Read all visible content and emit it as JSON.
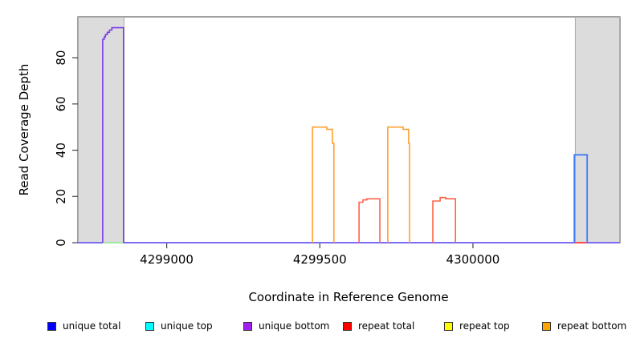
{
  "chart_data": {
    "type": "area",
    "title": "",
    "xlabel": "Coordinate in Reference Genome",
    "ylabel": "Read Coverage Depth",
    "xlim": [
      4298710,
      4300480
    ],
    "ylim": [
      0,
      97.7
    ],
    "x_ticks": [
      4299000,
      4299500,
      4300000
    ],
    "y_ticks": [
      0,
      20,
      40,
      60,
      80
    ],
    "grid": false,
    "legend_position": "bottom",
    "box_color": "#404040",
    "highlight_regions": [
      {
        "name": "left-gray-region",
        "x0": 4298710,
        "x1": 4298862,
        "fill": "#DCDCDC",
        "border": "#ACACAC"
      },
      {
        "name": "right-gray-region",
        "x0": 4300333,
        "x1": 4300480,
        "fill": "#DCDCDC",
        "border": "#ACACAC"
      }
    ],
    "series": [
      {
        "name": "unique-baseline-left",
        "color": "#7B6CF2",
        "width": 2,
        "points": [
          [
            4298710,
            0
          ],
          [
            4298791,
            0
          ]
        ]
      },
      {
        "name": "green-zero-segment",
        "color": "#A0E8A0",
        "width": 2,
        "points": [
          [
            4298791,
            0
          ],
          [
            4298859,
            0
          ]
        ]
      },
      {
        "name": "unique-baseline-mid",
        "color": "#7B6CF2",
        "width": 2,
        "points": [
          [
            4298859,
            0
          ],
          [
            4300331,
            0
          ]
        ]
      },
      {
        "name": "red-zero-segment",
        "color": "#FF4D4D",
        "width": 2,
        "points": [
          [
            4300331,
            0
          ],
          [
            4300373,
            0
          ]
        ]
      },
      {
        "name": "unique-baseline-right",
        "color": "#7B6CF2",
        "width": 2,
        "points": [
          [
            4300373,
            0
          ],
          [
            4300480,
            0
          ]
        ]
      },
      {
        "name": "repeat-bottom-peak-1",
        "color": "#FFA030",
        "width": 1.6,
        "points": [
          [
            4299476,
            0
          ],
          [
            4299476,
            50
          ],
          [
            4299523,
            50
          ],
          [
            4299523,
            49
          ],
          [
            4299541,
            49
          ],
          [
            4299541,
            43
          ],
          [
            4299546,
            43
          ],
          [
            4299546,
            0
          ]
        ]
      },
      {
        "name": "repeat-short-peak-1",
        "color": "#FF6347",
        "width": 1.6,
        "points": [
          [
            4299628,
            0
          ],
          [
            4299628,
            17.5
          ],
          [
            4299641,
            17.5
          ],
          [
            4299641,
            18.5
          ],
          [
            4299654,
            18.5
          ],
          [
            4299654,
            19
          ],
          [
            4299696,
            19
          ],
          [
            4299696,
            0
          ]
        ]
      },
      {
        "name": "repeat-bottom-peak-2",
        "color": "#FFA030",
        "width": 1.6,
        "points": [
          [
            4299722,
            0
          ],
          [
            4299722,
            50
          ],
          [
            4299772,
            50
          ],
          [
            4299772,
            49
          ],
          [
            4299790,
            49
          ],
          [
            4299790,
            43
          ],
          [
            4299793,
            43
          ],
          [
            4299793,
            0
          ]
        ]
      },
      {
        "name": "repeat-short-peak-2",
        "color": "#FF6347",
        "width": 1.6,
        "points": [
          [
            4299869,
            0
          ],
          [
            4299869,
            18
          ],
          [
            4299893,
            18
          ],
          [
            4299893,
            19.5
          ],
          [
            4299911,
            19.5
          ],
          [
            4299911,
            19
          ],
          [
            4299943,
            19
          ],
          [
            4299943,
            0
          ]
        ]
      },
      {
        "name": "unique-bottom-left-peak",
        "color": "#7A3BE8",
        "width": 1.6,
        "points": [
          [
            4298791,
            0
          ],
          [
            4298791,
            88
          ],
          [
            4298796,
            88
          ],
          [
            4298796,
            89
          ],
          [
            4298800,
            89
          ],
          [
            4298800,
            90
          ],
          [
            4298806,
            90
          ],
          [
            4298806,
            91
          ],
          [
            4298813,
            91
          ],
          [
            4298813,
            92
          ],
          [
            4298821,
            92
          ],
          [
            4298821,
            93
          ],
          [
            4298859,
            93
          ],
          [
            4298859,
            0
          ]
        ]
      },
      {
        "name": "unique-total-right-peak",
        "color": "#3D7BF5",
        "width": 1.8,
        "points": [
          [
            4300331,
            0
          ],
          [
            4300331,
            38
          ],
          [
            4300373,
            38
          ],
          [
            4300373,
            0
          ]
        ]
      }
    ],
    "legend": [
      {
        "label": "unique total",
        "color": "#0000FF"
      },
      {
        "label": "unique top",
        "color": "#00FFFF"
      },
      {
        "label": "unique bottom",
        "color": "#A020F0"
      },
      {
        "label": "repeat total",
        "color": "#FF0000"
      },
      {
        "label": "repeat top",
        "color": "#FFFF00"
      },
      {
        "label": "repeat bottom",
        "color": "#FFA500"
      }
    ]
  }
}
